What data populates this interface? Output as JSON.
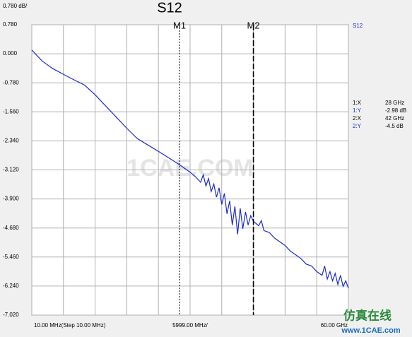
{
  "chart_data": {
    "type": "line",
    "title": "S12",
    "scale_label": "0.780 dB/",
    "x_start_label": "10.00 MHz(Step 10.00 MHz)",
    "x_mid_label": "5999.00 MHz/",
    "x_end_label": "60.00 GHz",
    "xlim": [
      0.01,
      60
    ],
    "xticks": [
      0.01,
      6,
      12,
      18,
      24,
      30,
      36,
      42,
      48,
      54,
      60
    ],
    "ylim": [
      -7.02,
      0.78
    ],
    "yticks": [
      {
        "value": 0.78,
        "label": "0.780"
      },
      {
        "value": 0,
        "label": "0.000"
      },
      {
        "value": -0.78,
        "label": "-0.780"
      },
      {
        "value": -1.56,
        "label": "-1.560"
      },
      {
        "value": -2.34,
        "label": "-2.340"
      },
      {
        "value": -3.12,
        "label": "-3.120"
      },
      {
        "value": -3.9,
        "label": "-3.900"
      },
      {
        "value": -4.68,
        "label": "-4.680"
      },
      {
        "value": -5.46,
        "label": "-5.460"
      },
      {
        "value": -6.24,
        "label": "-6.240"
      },
      {
        "value": -7.02,
        "label": "-7.020"
      }
    ],
    "grid": true,
    "series": [
      {
        "name": "S12",
        "color": "#1a2bd0",
        "x": [
          0.01,
          2,
          4,
          6,
          8,
          10,
          12,
          14,
          16,
          18,
          20,
          22,
          24,
          26,
          28,
          30,
          31,
          32,
          32.5,
          33,
          33.5,
          34,
          34.5,
          35,
          35.5,
          36,
          36.5,
          37,
          37.5,
          38,
          38.5,
          39,
          39.5,
          40,
          40.5,
          41,
          41.5,
          42,
          43,
          43.5,
          44,
          45,
          46,
          47,
          48,
          49,
          50,
          51,
          52,
          53,
          54,
          55,
          55.5,
          56,
          56.5,
          57,
          57.5,
          58,
          58.5,
          59,
          59.5,
          60
        ],
        "values": [
          0.1,
          -0.2,
          -0.4,
          -0.55,
          -0.7,
          -0.84,
          -1.1,
          -1.4,
          -1.7,
          -2.0,
          -2.28,
          -2.45,
          -2.62,
          -2.8,
          -2.98,
          -3.18,
          -3.3,
          -3.45,
          -3.25,
          -3.55,
          -3.35,
          -3.7,
          -3.5,
          -3.85,
          -3.6,
          -4.05,
          -3.75,
          -4.3,
          -3.95,
          -4.6,
          -4.1,
          -4.85,
          -4.15,
          -4.7,
          -4.25,
          -4.6,
          -4.35,
          -4.5,
          -4.62,
          -4.48,
          -4.75,
          -4.8,
          -4.95,
          -5.05,
          -5.15,
          -5.3,
          -5.4,
          -5.5,
          -5.65,
          -5.7,
          -5.85,
          -5.95,
          -5.7,
          -6.05,
          -5.85,
          -6.1,
          -5.9,
          -6.2,
          -5.95,
          -6.25,
          -6.1,
          -6.3
        ]
      }
    ],
    "markers": [
      {
        "label": "M1",
        "x": 28,
        "y": -2.98,
        "x_name": "1:X",
        "x_text": "28 GHz",
        "y_name": "1:Y",
        "y_text": "-2.98 dB"
      },
      {
        "label": "M2",
        "x": 42,
        "y": -4.5,
        "x_name": "2:X",
        "x_text": "42 GHz",
        "y_name": "2:Y",
        "y_text": "-4.5 dB"
      }
    ],
    "watermark": "1CAE.COM",
    "footer_brand": "仿真在线",
    "footer_url": "www.1CAE.com"
  }
}
